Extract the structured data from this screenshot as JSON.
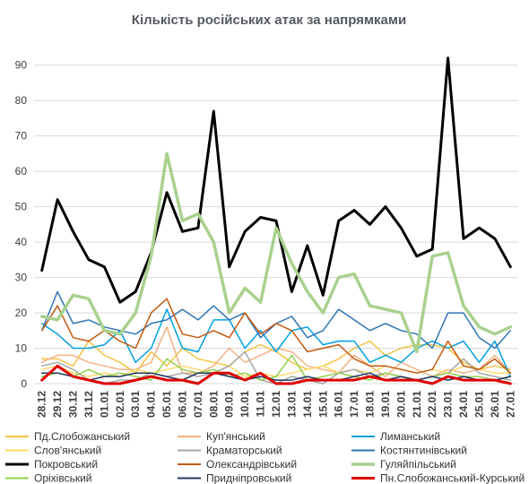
{
  "chart_data": {
    "type": "line",
    "title": "Кількість російських атак за напрямками",
    "xlabel": "",
    "ylabel": "",
    "ylim": [
      0,
      95
    ],
    "yticks": [
      0,
      10,
      20,
      30,
      40,
      50,
      60,
      70,
      80,
      90
    ],
    "grid": "horizontal",
    "legend_position": "bottom",
    "x": [
      "28.12",
      "29.12",
      "30.12",
      "31.12",
      "01.01",
      "02.01",
      "03.01",
      "04.01",
      "05.01",
      "06.01",
      "07.01",
      "08.01",
      "09.01",
      "10.01",
      "11.01",
      "12.01",
      "13.01",
      "14.01",
      "15.01",
      "16.01",
      "17.01",
      "18.01",
      "19.01",
      "20.01",
      "21.01",
      "22.01",
      "23.01",
      "24.01",
      "25.01",
      "26.01",
      "27.01"
    ],
    "series": [
      {
        "name": "Пд.Слобожанський",
        "color": "#f5c242",
        "width": 1.5,
        "values": [
          7,
          7,
          5,
          12,
          8,
          6,
          3,
          9,
          5,
          10,
          7,
          6,
          5,
          9,
          11,
          9,
          6,
          4,
          5,
          7,
          10,
          12,
          8,
          10,
          11,
          11,
          10,
          6,
          4,
          5,
          4
        ]
      },
      {
        "name": "Куп'янський",
        "color": "#f4b183",
        "width": 1.5,
        "values": [
          6,
          8,
          8,
          6,
          5,
          4,
          4,
          6,
          16,
          3,
          3,
          5,
          10,
          6,
          8,
          10,
          9,
          5,
          4,
          3,
          8,
          5,
          2,
          6,
          4,
          2,
          4,
          3,
          4,
          8,
          3
        ]
      },
      {
        "name": "Лиманський",
        "color": "#00a0e0",
        "width": 1.5,
        "values": [
          17,
          14,
          10,
          10,
          11,
          15,
          6,
          10,
          21,
          10,
          9,
          18,
          18,
          10,
          15,
          9,
          15,
          16,
          11,
          12,
          12,
          6,
          8,
          6,
          10,
          12,
          10,
          12,
          6,
          12,
          2
        ]
      },
      {
        "name": "Слов'янський",
        "color": "#ffd966",
        "width": 1.5,
        "values": [
          4,
          5,
          3,
          2,
          3,
          2,
          4,
          3,
          4,
          5,
          4,
          3,
          5,
          2,
          3,
          2,
          3,
          4,
          5,
          3,
          4,
          3,
          5,
          4,
          3,
          4,
          3,
          5,
          4,
          3,
          3
        ]
      },
      {
        "name": "Краматорський",
        "color": "#a6a6a6",
        "width": 1.5,
        "values": [
          5,
          6,
          4,
          1,
          0,
          1,
          1,
          3,
          2,
          3,
          2,
          3,
          5,
          9,
          1,
          0,
          2,
          1,
          0,
          3,
          4,
          2,
          3,
          2,
          1,
          2,
          3,
          7,
          3,
          2,
          1
        ]
      },
      {
        "name": "Костянтинівський",
        "color": "#2f75b5",
        "width": 1.5,
        "values": [
          15,
          26,
          17,
          18,
          16,
          15,
          14,
          17,
          18,
          21,
          18,
          22,
          18,
          20,
          13,
          17,
          19,
          13,
          15,
          21,
          18,
          15,
          17,
          15,
          14,
          10,
          20,
          20,
          13,
          10,
          15
        ]
      },
      {
        "name": "Покровський",
        "color": "#000000",
        "width": 3,
        "values": [
          32,
          52,
          43,
          35,
          33,
          23,
          26,
          37,
          54,
          43,
          44,
          77,
          33,
          43,
          47,
          46,
          26,
          39,
          25,
          46,
          49,
          45,
          50,
          44,
          36,
          38,
          92,
          41,
          44,
          41,
          33
        ]
      },
      {
        "name": "Олександрівський",
        "color": "#c55a11",
        "width": 1.5,
        "values": [
          15,
          22,
          13,
          12,
          15,
          12,
          10,
          20,
          24,
          14,
          13,
          15,
          13,
          20,
          14,
          17,
          15,
          9,
          10,
          11,
          7,
          5,
          5,
          4,
          3,
          4,
          12,
          5,
          4,
          7,
          3
        ]
      },
      {
        "name": "Гуляйпільський",
        "color": "#a9d18e",
        "width": 3.5,
        "values": [
          19,
          18,
          25,
          24,
          15,
          14,
          20,
          36,
          65,
          46,
          48,
          40,
          20,
          27,
          23,
          44,
          34,
          26,
          20,
          30,
          31,
          22,
          21,
          20,
          9,
          36,
          37,
          22,
          16,
          14,
          16
        ]
      },
      {
        "name": "Оріхівський",
        "color": "#92d050",
        "width": 1.5,
        "values": [
          2,
          3,
          2,
          4,
          2,
          3,
          2,
          1,
          7,
          4,
          3,
          4,
          2,
          3,
          1,
          2,
          8,
          1,
          2,
          3,
          2,
          1,
          3,
          2,
          1,
          2,
          3,
          2,
          2,
          1,
          2
        ]
      },
      {
        "name": "Придніпровський",
        "color": "#203864",
        "width": 1.5,
        "values": [
          3,
          3,
          2,
          1,
          2,
          2,
          3,
          3,
          2,
          1,
          3,
          3,
          2,
          1,
          2,
          1,
          1,
          2,
          1,
          1,
          2,
          3,
          1,
          2,
          1,
          2,
          1,
          2,
          1,
          1,
          2
        ]
      },
      {
        "name": "Пн.Слобожанський-Курський",
        "color": "#e00000",
        "width": 3,
        "values": [
          1,
          5,
          2,
          1,
          0,
          0,
          1,
          2,
          1,
          1,
          0,
          3,
          3,
          1,
          3,
          0,
          0,
          1,
          1,
          1,
          1,
          2,
          1,
          1,
          1,
          0,
          2,
          1,
          1,
          1,
          0
        ]
      }
    ]
  }
}
